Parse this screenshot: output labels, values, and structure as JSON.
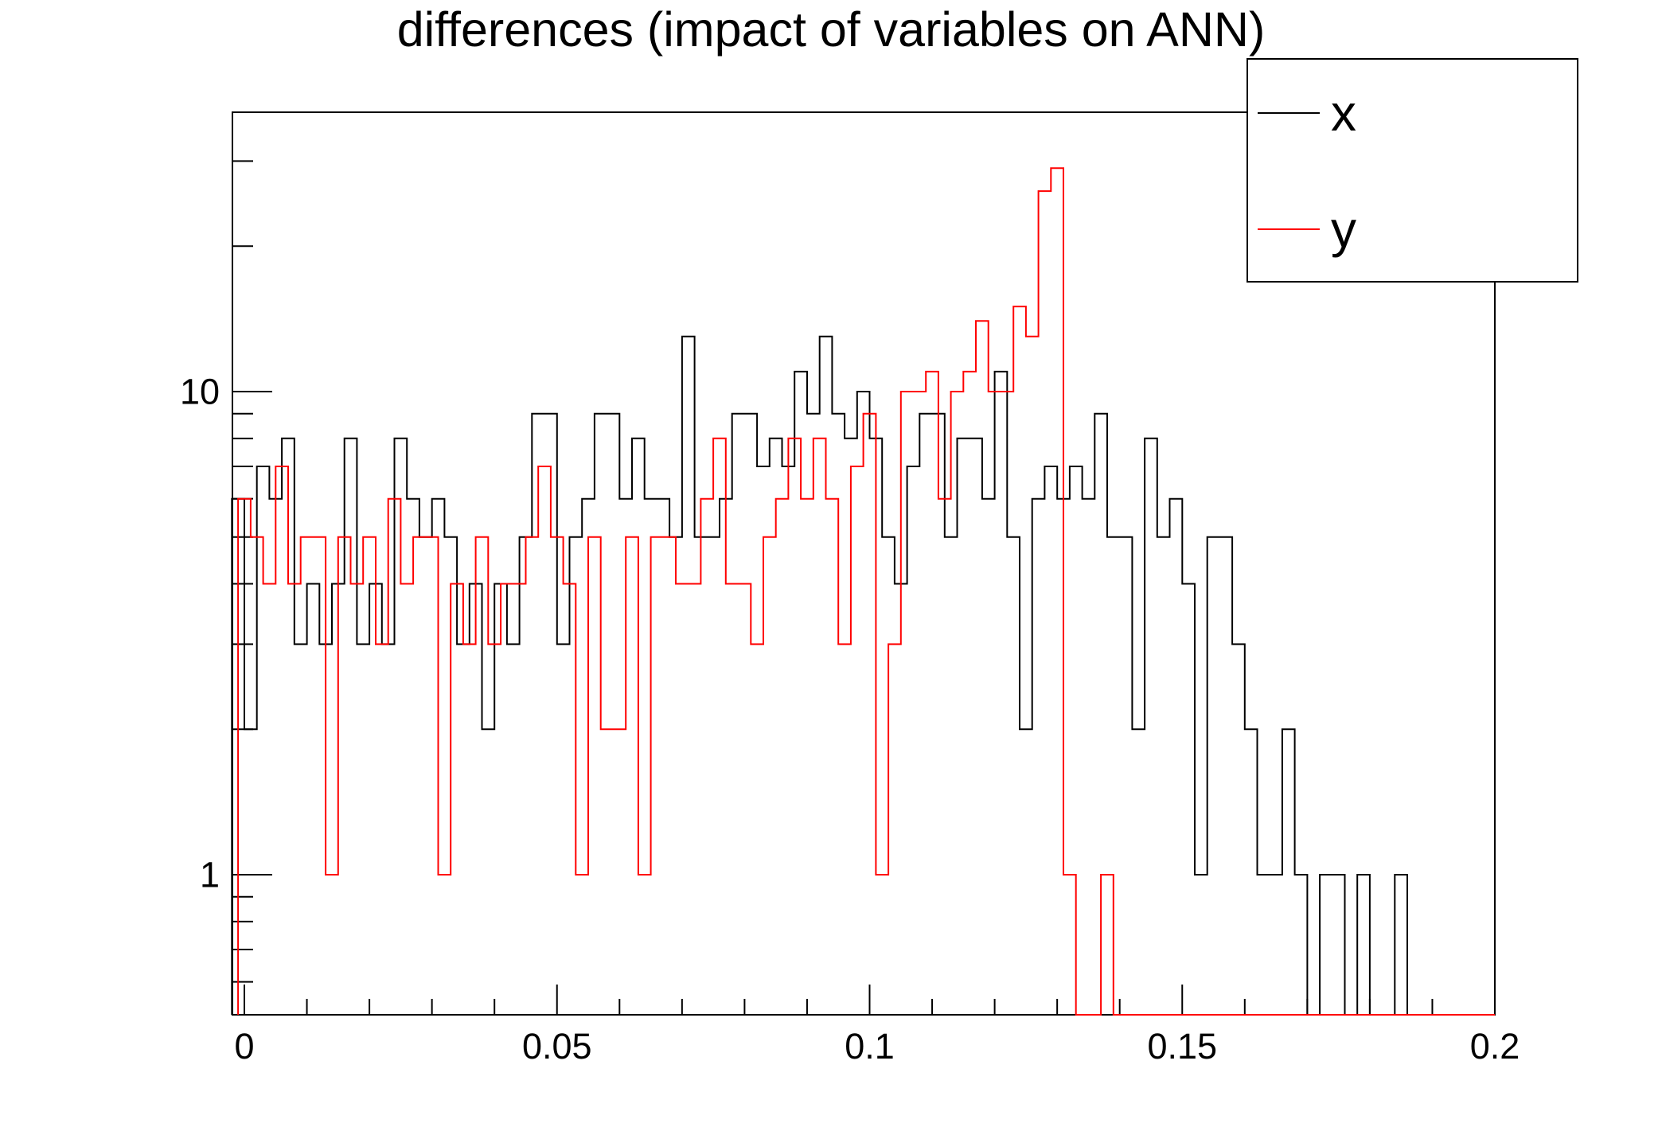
{
  "title": "differences (impact of variables on ANN)",
  "legend": {
    "position": "top-right",
    "entries": [
      {
        "label": "x",
        "color": "#000000"
      },
      {
        "label": "y",
        "color": "#ff0000"
      }
    ]
  },
  "axes": {
    "x": {
      "major_ticks": [
        {
          "value": 0,
          "label": "0"
        },
        {
          "value": 0.05,
          "label": "0.05"
        },
        {
          "value": 0.1,
          "label": "0.1"
        },
        {
          "value": 0.15,
          "label": "0.15"
        },
        {
          "value": 0.2,
          "label": "0.2"
        }
      ],
      "minor_tick_step": 0.01,
      "range": [
        -0.0019,
        0.2
      ]
    },
    "y": {
      "scale": "log",
      "major_ticks": [
        {
          "value": 10,
          "label": "10"
        },
        {
          "value": 1,
          "label": "1"
        }
      ],
      "minor_ticks": [
        30,
        20,
        9,
        8,
        7,
        6,
        5,
        4,
        3,
        2,
        0.9,
        0.8,
        0.7,
        0.6
      ],
      "range": [
        0.513,
        37.8
      ]
    }
  },
  "chart_data": {
    "type": "line",
    "subtype": "step-histogram",
    "title": "differences (impact of variables on ANN)",
    "xlabel": "",
    "ylabel": "",
    "yscale": "log",
    "xlim": [
      -0.0019,
      0.2
    ],
    "ylim": [
      0.513,
      37.8
    ],
    "grid": false,
    "legend_position": "top-right",
    "series": [
      {
        "name": "x",
        "color": "#000000",
        "bin_start": -0.002,
        "bin_width": 0.002,
        "values": [
          6,
          2,
          7,
          6,
          8,
          3,
          4,
          3,
          4,
          8,
          3,
          4,
          3,
          8,
          6,
          5,
          6,
          5,
          3,
          4,
          2,
          4,
          3,
          5,
          9,
          9,
          3,
          5,
          6,
          9,
          9,
          6,
          8,
          6,
          6,
          5,
          13,
          5,
          5,
          6,
          9,
          9,
          7,
          8,
          7,
          11,
          9,
          13,
          9,
          8,
          10,
          8,
          5,
          4,
          7,
          9,
          9,
          5,
          8,
          8,
          6,
          11,
          5,
          2,
          6,
          7,
          6,
          7,
          6,
          9,
          5,
          5,
          2,
          8,
          5,
          6,
          4,
          1,
          5,
          5,
          3,
          2,
          1,
          1,
          2,
          1,
          0,
          1,
          1,
          0,
          1,
          0,
          0,
          1,
          0,
          0,
          0,
          0,
          0,
          0,
          0
        ]
      },
      {
        "name": "y",
        "color": "#ff0000",
        "bin_start": -0.001,
        "bin_width": 0.002,
        "values": [
          6,
          5,
          4,
          7,
          4,
          5,
          5,
          1,
          5,
          4,
          5,
          3,
          6,
          4,
          5,
          5,
          1,
          4,
          3,
          5,
          3,
          4,
          4,
          5,
          7,
          5,
          4,
          1,
          5,
          2,
          2,
          5,
          1,
          5,
          5,
          4,
          4,
          6,
          8,
          4,
          4,
          3,
          5,
          6,
          8,
          6,
          8,
          6,
          3,
          7,
          9,
          1,
          3,
          10,
          10,
          11,
          6,
          10,
          11,
          14,
          10,
          10,
          15,
          13,
          26,
          29,
          1,
          0,
          0,
          1
        ]
      }
    ]
  }
}
